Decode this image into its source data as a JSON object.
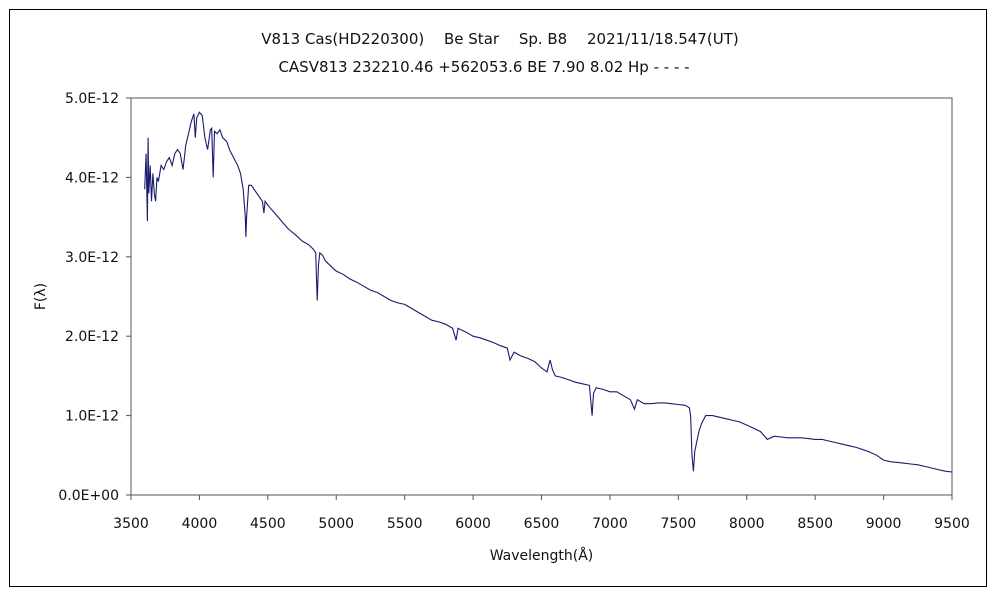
{
  "chart_data": {
    "type": "line",
    "title": "V813 Cas(HD220300)　 Be Star　 Sp. B8　 2021/11/18.547(UT)",
    "subtitle": "CASV813 232210.46 +562053.6 BE 7.90 8.02 Hp - - - -",
    "xlabel": "Wavelength(Å)",
    "ylabel": "F(λ)",
    "xlim": [
      3500,
      9500
    ],
    "ylim": [
      0,
      5e-12
    ],
    "x_ticks": [
      "3500",
      "4000",
      "4500",
      "5000",
      "5500",
      "6000",
      "6500",
      "7000",
      "7500",
      "8000",
      "8500",
      "9000",
      "9500"
    ],
    "y_ticks": [
      "0.0E+00",
      "1.0E-12",
      "2.0E-12",
      "3.0E-12",
      "4.0E-12",
      "5.0E-12"
    ],
    "grid": false,
    "legend": "none",
    "line_color": "#1a1a6e",
    "series": [
      {
        "x": [
          3600,
          3610,
          3620,
          3625,
          3630,
          3640,
          3650,
          3660,
          3670,
          3680,
          3690,
          3700,
          3720,
          3740,
          3760,
          3780,
          3800,
          3820,
          3840,
          3860,
          3880,
          3890,
          3900,
          3920,
          3940,
          3960,
          3970,
          3980,
          4000,
          4020,
          4040,
          4060,
          4080,
          4090,
          4101,
          4110,
          4130,
          4150,
          4170,
          4200,
          4220,
          4250,
          4280,
          4300,
          4320,
          4335,
          4340,
          4345,
          4360,
          4380,
          4400,
          4440,
          4460,
          4471,
          4480,
          4500,
          4550,
          4600,
          4650,
          4700,
          4750,
          4800,
          4830,
          4850,
          4861,
          4870,
          4880,
          4900,
          4920,
          4950,
          4980,
          5000,
          5050,
          5100,
          5150,
          5200,
          5250,
          5300,
          5350,
          5400,
          5450,
          5500,
          5550,
          5600,
          5650,
          5700,
          5750,
          5800,
          5850,
          5876,
          5890,
          5950,
          6000,
          6050,
          6100,
          6150,
          6200,
          6250,
          6270,
          6300,
          6350,
          6400,
          6450,
          6500,
          6540,
          6563,
          6580,
          6600,
          6650,
          6700,
          6750,
          6800,
          6850,
          6865,
          6870,
          6880,
          6900,
          6950,
          7000,
          7050,
          7100,
          7150,
          7180,
          7200,
          7250,
          7300,
          7350,
          7400,
          7450,
          7500,
          7550,
          7580,
          7590,
          7600,
          7610,
          7620,
          7650,
          7670,
          7700,
          7750,
          7800,
          7850,
          7900,
          7950,
          8000,
          8050,
          8100,
          8150,
          8200,
          8250,
          8300,
          8350,
          8400,
          8450,
          8500,
          8550,
          8600,
          8650,
          8700,
          8750,
          8800,
          8850,
          8900,
          8950,
          9000,
          9050,
          9100,
          9150,
          9200,
          9250,
          9300,
          9350,
          9400,
          9450,
          9500
        ],
        "y": [
          3.85,
          4.3,
          3.45,
          4.5,
          3.8,
          4.15,
          3.7,
          4.05,
          3.8,
          3.7,
          4.0,
          3.95,
          4.15,
          4.1,
          4.2,
          4.25,
          4.15,
          4.3,
          4.35,
          4.3,
          4.1,
          4.25,
          4.4,
          4.55,
          4.7,
          4.8,
          4.5,
          4.75,
          4.82,
          4.78,
          4.5,
          4.35,
          4.6,
          4.62,
          4.0,
          4.58,
          4.55,
          4.6,
          4.5,
          4.45,
          4.35,
          4.25,
          4.15,
          4.05,
          3.85,
          3.5,
          3.25,
          3.5,
          3.9,
          3.9,
          3.85,
          3.75,
          3.7,
          3.55,
          3.7,
          3.65,
          3.55,
          3.45,
          3.35,
          3.28,
          3.2,
          3.15,
          3.1,
          3.05,
          2.45,
          2.9,
          3.05,
          3.02,
          2.95,
          2.9,
          2.85,
          2.82,
          2.78,
          2.72,
          2.68,
          2.63,
          2.58,
          2.55,
          2.5,
          2.45,
          2.42,
          2.4,
          2.35,
          2.3,
          2.25,
          2.2,
          2.18,
          2.15,
          2.1,
          1.95,
          2.1,
          2.05,
          2.0,
          1.98,
          1.95,
          1.92,
          1.88,
          1.85,
          1.7,
          1.8,
          1.75,
          1.72,
          1.68,
          1.6,
          1.55,
          1.7,
          1.58,
          1.5,
          1.48,
          1.45,
          1.42,
          1.4,
          1.38,
          1.1,
          1.0,
          1.28,
          1.35,
          1.33,
          1.3,
          1.3,
          1.25,
          1.2,
          1.08,
          1.2,
          1.15,
          1.15,
          1.16,
          1.16,
          1.15,
          1.14,
          1.13,
          1.1,
          1.0,
          0.5,
          0.3,
          0.55,
          0.8,
          0.9,
          1.0,
          1.0,
          0.98,
          0.96,
          0.94,
          0.92,
          0.88,
          0.84,
          0.8,
          0.7,
          0.74,
          0.73,
          0.72,
          0.72,
          0.72,
          0.71,
          0.7,
          0.7,
          0.68,
          0.66,
          0.64,
          0.62,
          0.6,
          0.57,
          0.54,
          0.5,
          0.44,
          0.42,
          0.41,
          0.4,
          0.39,
          0.38,
          0.36,
          0.34,
          0.32,
          0.3,
          0.29
        ]
      }
    ],
    "y_unit_scale": 1e-12
  }
}
